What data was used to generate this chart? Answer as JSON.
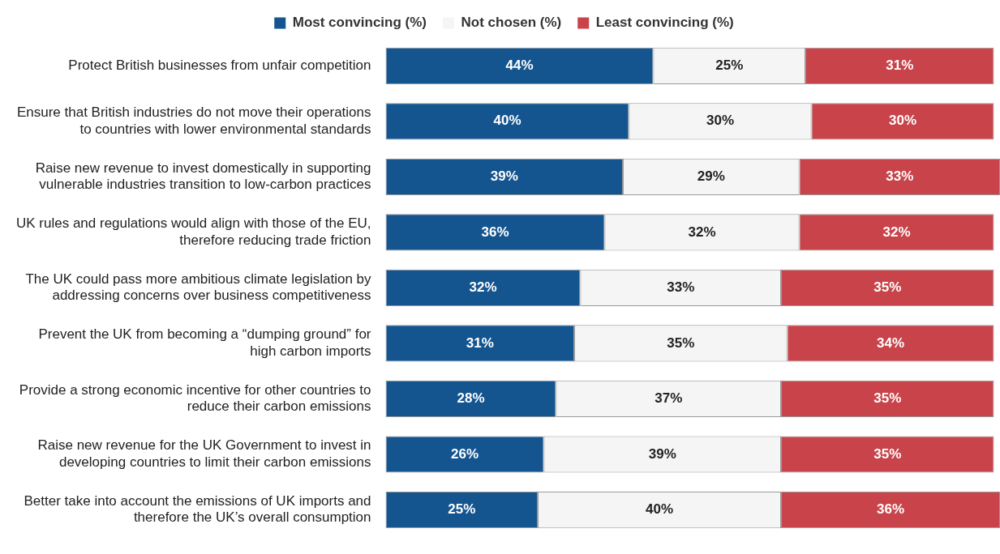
{
  "chart_data": {
    "type": "bar",
    "orientation": "horizontal",
    "stacked": true,
    "legend": "top",
    "grid": false,
    "categories": [
      "Protect British businesses from unfair competition",
      "Ensure that British industries do not move their operations to countries with lower environmental standards",
      "Raise new revenue to invest domestically in supporting vulnerable industries transition to low-carbon practices",
      "UK rules and regulations would align with those of the EU, therefore reducing trade friction",
      "The UK could pass more ambitious climate legislation by addressing concerns over business competitiveness",
      "Prevent the UK from becoming a “dumping ground” for high carbon imports",
      "Provide a strong economic incentive for other countries to reduce their carbon emissions",
      "Raise new revenue for the UK Government to invest in developing countries to limit their carbon emissions",
      "Better take into account the emissions of UK imports and therefore the UK’s overall consumption"
    ],
    "series": [
      {
        "name": "Most convincing (%)",
        "color": "#14558f",
        "values": [
          44,
          40,
          39,
          36,
          32,
          31,
          28,
          26,
          25
        ],
        "value_labels": [
          "44%",
          "40%",
          "39%",
          "36%",
          "32%",
          "31%",
          "28%",
          "26%",
          "25%"
        ]
      },
      {
        "name": "Not chosen (%)",
        "color": "#f5f5f5",
        "values": [
          25,
          30,
          29,
          32,
          33,
          35,
          37,
          39,
          40
        ],
        "value_labels": [
          "25%",
          "30%",
          "29%",
          "32%",
          "33%",
          "35%",
          "37%",
          "39%",
          "40%"
        ]
      },
      {
        "name": "Least convincing (%)",
        "color": "#c8444a",
        "values": [
          31,
          30,
          33,
          32,
          35,
          34,
          35,
          35,
          36
        ],
        "value_labels": [
          "31%",
          "30%",
          "33%",
          "32%",
          "35%",
          "34%",
          "35%",
          "35%",
          "36%"
        ]
      }
    ]
  }
}
